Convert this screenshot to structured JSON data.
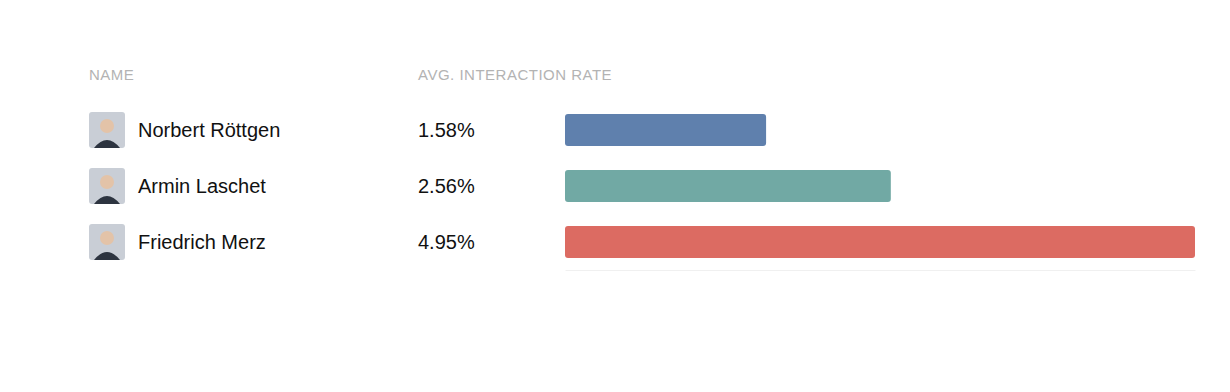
{
  "chart_data": {
    "type": "bar",
    "orientation": "horizontal",
    "ylabel": "NAME",
    "xlabel": "AVG. INTERACTION RATE",
    "categories": [
      "Norbert Röttgen",
      "Armin Laschet",
      "Friedrich Merz"
    ],
    "values": [
      1.58,
      2.56,
      4.95
    ],
    "value_labels": [
      "1.58%",
      "2.56%",
      "4.95%"
    ],
    "colors": [
      "#5f80ad",
      "#71a9a4",
      "#dc6b62"
    ],
    "xlim": [
      0,
      4.95
    ],
    "xticks": [],
    "data_labels": true,
    "tick_labels": false,
    "grid": false
  }
}
